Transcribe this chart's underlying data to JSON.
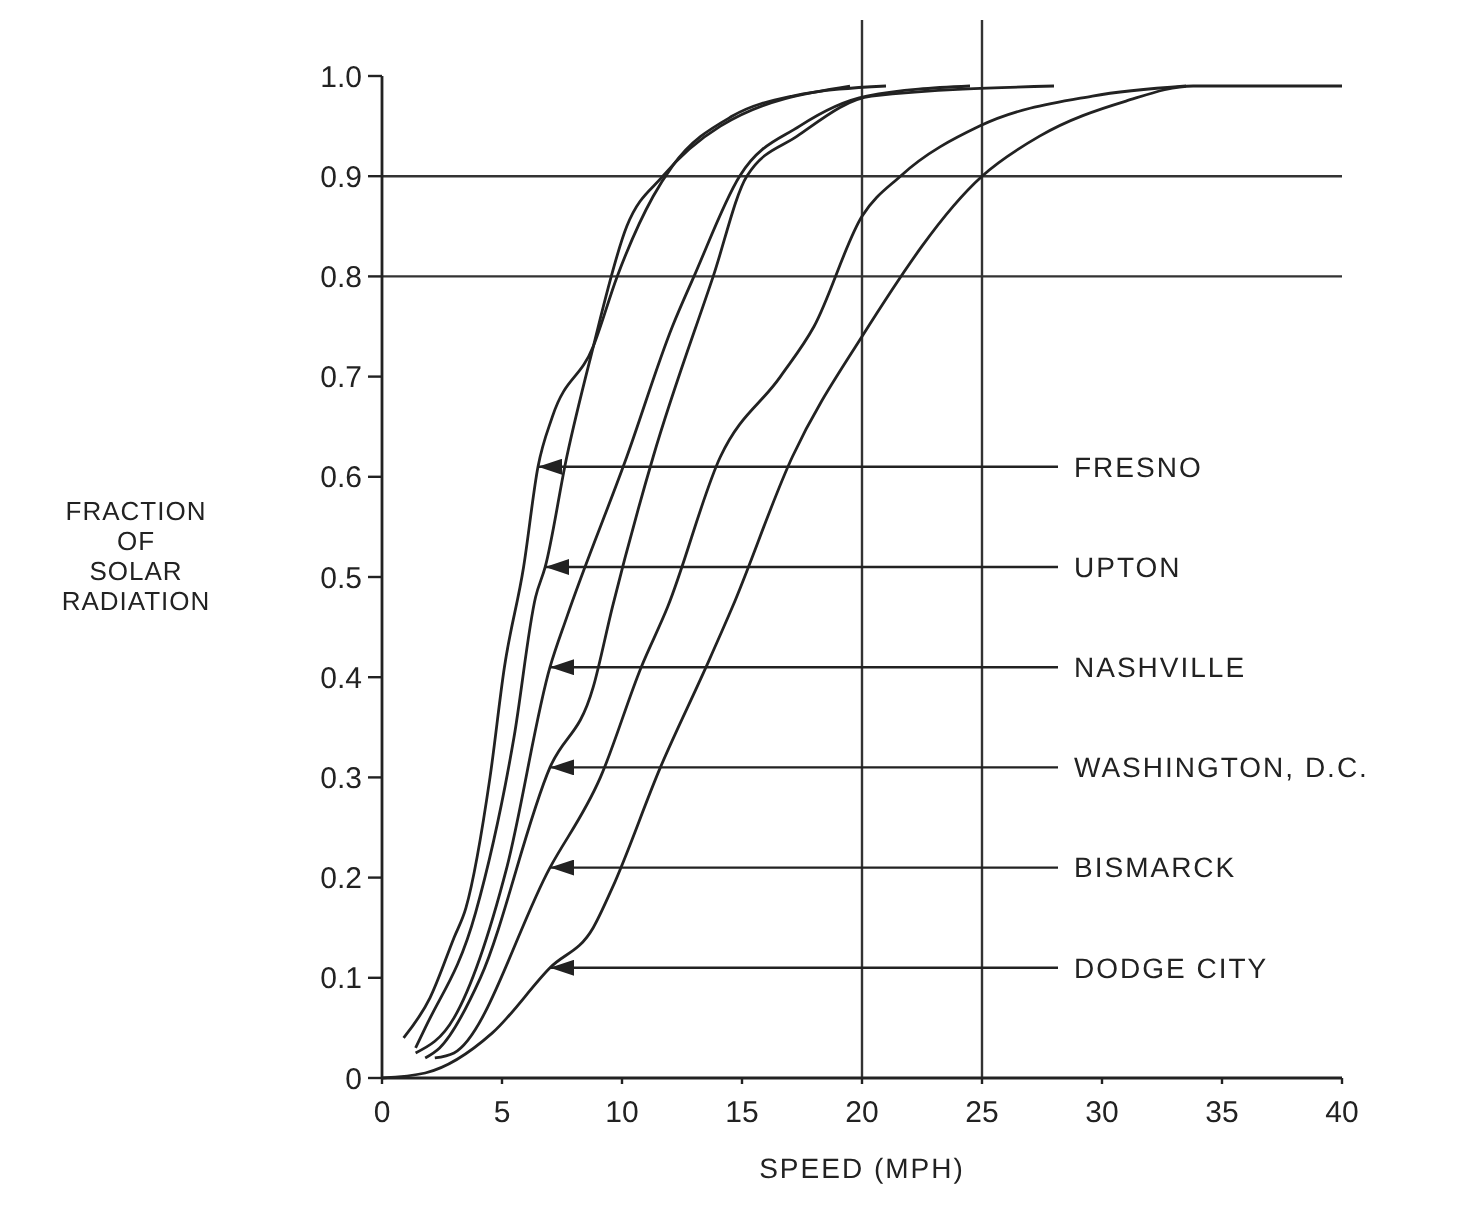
{
  "chart_data": {
    "type": "line",
    "xlabel": "SPEED (MPH)",
    "ylabel": "FRACTION OF SOLAR RADIATION",
    "xlim": [
      0,
      40
    ],
    "ylim": [
      0,
      1
    ],
    "xticks": [
      0,
      5,
      10,
      15,
      20,
      25,
      30,
      35,
      40
    ],
    "yticks": [
      0,
      0.1,
      0.2,
      0.3,
      0.4,
      0.5,
      0.6,
      0.7,
      0.8,
      0.9,
      {
        "value": 1,
        "label": "1.0"
      }
    ],
    "grid": false,
    "marker": "none",
    "line_style": "solid",
    "series": [
      {
        "color": "#222222",
        "x": [
          0.9,
          2,
          3,
          3.5,
          4.5,
          5.1,
          5.9,
          6.5,
          7.1,
          8.8,
          9.8,
          11.3,
          12.1,
          14.6,
          17.1,
          21
        ],
        "values": [
          0.04,
          0.08,
          0.14,
          0.17,
          0.3,
          0.41,
          0.51,
          0.61,
          0.66,
          0.73,
          0.8,
          0.88,
          0.91,
          0.96,
          0.98,
          0.99
        ]
      },
      {
        "color": "#222222",
        "x": [
          1.4,
          1.8,
          3.9,
          5.5,
          6.4,
          6.8,
          7.7,
          8.7,
          10.2,
          11.7,
          14.1,
          19.5
        ],
        "values": [
          0.03,
          0.05,
          0.165,
          0.34,
          0.48,
          0.51,
          0.62,
          0.72,
          0.85,
          0.9,
          0.95,
          0.99
        ]
      },
      {
        "color": "#222222",
        "x": [
          1.4,
          3,
          5.2,
          7,
          7.7,
          10.2,
          12.1,
          13,
          14.9,
          17.4,
          20.2,
          24.5
        ],
        "values": [
          0.025,
          0.06,
          0.21,
          0.41,
          0.46,
          0.62,
          0.75,
          0.8,
          0.9,
          0.95,
          0.98,
          0.99
        ]
      },
      {
        "color": "#222222",
        "x": [
          1.8,
          2.4,
          4.1,
          7,
          8.8,
          9.6,
          11.3,
          13.8,
          15.2,
          17.3,
          20.4,
          28
        ],
        "values": [
          0.02,
          0.03,
          0.1,
          0.31,
          0.39,
          0.47,
          0.62,
          0.8,
          0.9,
          0.94,
          0.98,
          0.99
        ]
      },
      {
        "color": "#222222",
        "x": [
          2.2,
          3,
          7,
          9.1,
          10.8,
          11.9,
          14.1,
          16.6,
          18,
          20,
          21.6,
          24.9,
          29.6,
          33.5
        ],
        "values": [
          0.02,
          0.025,
          0.21,
          0.3,
          0.41,
          0.47,
          0.62,
          0.7,
          0.75,
          0.86,
          0.9,
          0.95,
          0.98,
          0.99
        ]
      },
      {
        "color": "#222222",
        "x": [
          0,
          1.8,
          4.6,
          7,
          8.8,
          9.6,
          11.6,
          13.5,
          14.6,
          17.1,
          20,
          25,
          27.4,
          31,
          33.8,
          40
        ],
        "values": [
          0,
          0.005,
          0.045,
          0.11,
          0.15,
          0.19,
          0.31,
          0.41,
          0.47,
          0.62,
          0.74,
          0.9,
          0.94,
          0.975,
          0.99,
          0.99
        ]
      }
    ],
    "ref_lines": [
      {
        "axis": "y",
        "value": 0.8,
        "color": "#333333"
      },
      {
        "axis": "y",
        "value": 0.9,
        "color": "#333333"
      },
      {
        "axis": "x",
        "value": 20,
        "color": "#333333"
      },
      {
        "axis": "x",
        "value": 25,
        "color": "#333333"
      }
    ],
    "annotations": [
      {
        "text": "FRESNO",
        "x": 6.5,
        "y": 0.61
      },
      {
        "text": "UPTON",
        "x": 6.8,
        "y": 0.51
      },
      {
        "text": "NASHVILLE",
        "x": 7,
        "y": 0.41
      },
      {
        "text": "WASHINGTON, D.C.",
        "x": 7,
        "y": 0.31
      },
      {
        "text": "BISMARCK",
        "x": 7,
        "y": 0.21
      },
      {
        "text": "DODGE CITY",
        "x": 7,
        "y": 0.11
      }
    ]
  }
}
